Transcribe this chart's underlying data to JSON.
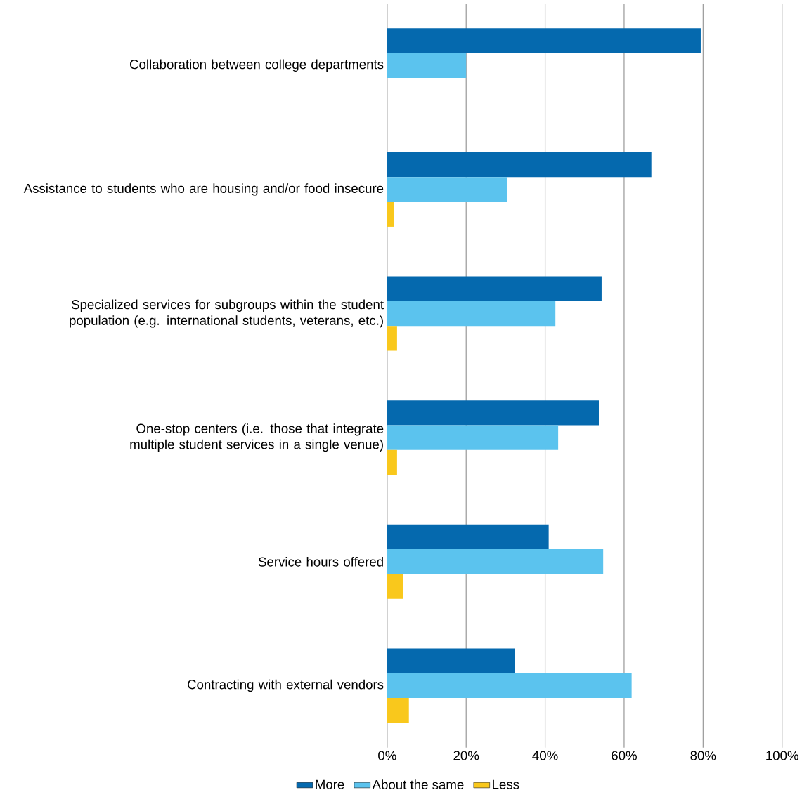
{
  "chart_data": {
    "type": "bar",
    "orientation": "horizontal",
    "categories": [
      "Collaboration between college departments",
      "Assistance to students who are housing and/or food insecure",
      "Specialized services for subgroups within the student population (e.g. international students, veterans, etc.)",
      "One-stop centers (i.e. those that integrate multiple student services in a single venue)",
      "Service hours offered",
      "Contracting with external vendors"
    ],
    "series": [
      {
        "name": "More",
        "color": "#0569ae",
        "values": [
          79.4,
          66.9,
          54.3,
          53.6,
          40.9,
          32.3
        ]
      },
      {
        "name": "About the same",
        "color": "#5bc3ee",
        "values": [
          20.0,
          30.4,
          42.6,
          43.3,
          54.7,
          61.9
        ]
      },
      {
        "name": "Less",
        "color": "#f9c81c",
        "values": [
          null,
          1.8,
          2.5,
          2.5,
          4.0,
          5.5
        ]
      }
    ],
    "xlim": [
      0,
      100
    ],
    "xticks": [
      {
        "value": 0,
        "label": "0%"
      },
      {
        "value": 20,
        "label": "20%"
      },
      {
        "value": 40,
        "label": "40%"
      },
      {
        "value": 60,
        "label": "60%"
      },
      {
        "value": 80,
        "label": "80%"
      },
      {
        "value": 100,
        "label": "100%"
      }
    ],
    "grid": "x",
    "legend": "bottom"
  }
}
